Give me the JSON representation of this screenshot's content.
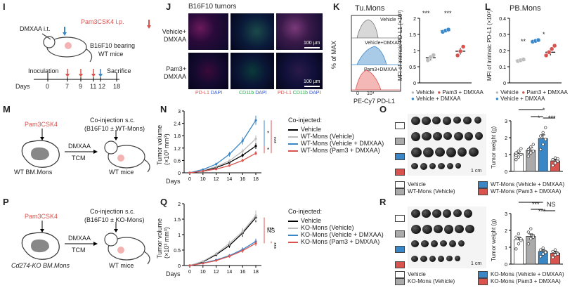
{
  "panelI": {
    "label": "I",
    "dmxaa": "DMXAA i.t.",
    "pam3": "Pam3CSK4 i.p.",
    "mice1": "B16F10 bearing",
    "mice2": "WT mice",
    "inoculation": "Inoculation",
    "sacrifice": "Sacrifice",
    "days_label": "Days",
    "days": [
      "0",
      "7",
      "9",
      "11",
      "12",
      "18"
    ]
  },
  "panelJ": {
    "label": "J",
    "title": "B16F10 tumors",
    "row1a": "Vehicle+",
    "row1b": "DMXAA",
    "row2a": "Pam3+",
    "row2b": "DMXAA",
    "scale1": "100 µm",
    "scale2": "100 µm",
    "col1_red": "PD-L1",
    "col1_blue": "DAPI",
    "col2_green": "CD11b",
    "col2_blue": "DAPI",
    "col3_red": "PD-L1",
    "col3_green": "CD11b",
    "col3_blue": "DAPI"
  },
  "panelK": {
    "label": "K",
    "title": "Tu.Mons",
    "ylabel_hist": "% of MAX",
    "xlabel_hist": "PE-Cy7 PD-L1",
    "hist_labels": [
      "Vehicle",
      "Vehicle+DMXAA",
      "Pam3+DMXAA"
    ],
    "hist_ticks": [
      "0",
      "10⁴"
    ],
    "ylabel": "MFI of intrinsic PD-L1",
    "yunit": "(×10³)",
    "sig1": "***",
    "sig2": "***",
    "legend": [
      "Vehicle",
      "Pam3 + DMXAA",
      "Vehicle + DMXAA"
    ]
  },
  "panelL": {
    "label": "L",
    "title": "PB.Mons",
    "ylabel": "MFI of intrinsic PD-L1",
    "yunit": "(×10³)",
    "sig1": "**",
    "sig2": "*",
    "legend": [
      "Vehicle",
      "Pam3 + DMXAA",
      "Vehicle + DMXAA"
    ]
  },
  "panelM": {
    "label": "M",
    "pam3": "Pam3CSK4",
    "coinj1": "Co-injection s.c.",
    "coinj2": "(B16F10 ± WT-Mons)",
    "dmxaa": "DMXAA",
    "tcm": "TCM",
    "source": "WT BM.Mons",
    "target": "WT mice"
  },
  "panelN": {
    "label": "N",
    "ylabel": "Tumor volume",
    "yunit": "(×10³ mm³)",
    "xlabel": "Days",
    "legend_title": "Co-injected:",
    "legend": [
      "Vehicle",
      "WT-Mons (Vehicle)",
      "WT-Mons (Vehicle + DMXAA)",
      "WT-Mons (Pam3 + DMXAA)"
    ],
    "sig": [
      "*",
      "*",
      "***"
    ]
  },
  "panelO": {
    "label": "O",
    "scale": "1 cm",
    "ylabel": "Tumor weight (g)",
    "sig": [
      "*",
      "*",
      "***"
    ],
    "legend": [
      "Vehicle",
      "WT-Mons (Vehicle)",
      "WT-Mons (Vehicle + DMXAA)",
      "WT-Mons (Pam3 + DMXAA)"
    ]
  },
  "panelP": {
    "label": "P",
    "pam3": "Pam3CSK4",
    "coinj1": "Co-injection s.c.",
    "coinj2": "(B16F10 ± KO-Mons)",
    "dmxaa": "DMXAA",
    "tcm": "TCM",
    "source": "Cd274-KO BM.Mons",
    "target": "WT mice"
  },
  "panelQ": {
    "label": "Q",
    "ylabel": "Tumor volume",
    "yunit": "(×10³ mm³)",
    "xlabel": "Days",
    "legend_title": "Co-injected:",
    "legend": [
      "Vehicle",
      "KO-Mons (Vehicle)",
      "KO-Mons (Vehicle + DMXAA)",
      "KO-Mons (Pam3 + DMXAA)"
    ],
    "sig": [
      "***",
      "***",
      "NS"
    ]
  },
  "panelR": {
    "label": "R",
    "scale": "1 cm",
    "ylabel": "Tumor weight (g)",
    "sig": [
      "***",
      "NS",
      "***"
    ],
    "legend": [
      "Vehicle",
      "KO-Mons (Vehicle)",
      "KO-Mons (Vehicle + DMXAA)",
      "KO-Mons (Pam3 + DMXAA)"
    ]
  },
  "colors": {
    "vehicle": "#000000",
    "mons_vehicle": "#bdbdbd",
    "dmxaa": "#3a87c8",
    "pam3": "#d9534f"
  },
  "chart_data": [
    {
      "id": "K",
      "type": "scatter",
      "categories": [
        "Vehicle",
        "Vehicle + DMXAA",
        "Pam3 + DMXAA"
      ],
      "ylim": [
        0,
        2.0
      ],
      "yticks": [
        0,
        0.5,
        1.0,
        1.5,
        2.0
      ],
      "series": [
        {
          "name": "Vehicle",
          "mean": 0.78,
          "err": 0.08,
          "points": [
            0.7,
            0.8,
            0.86
          ]
        },
        {
          "name": "Vehicle + DMXAA",
          "mean": 1.62,
          "err": 0.03,
          "points": [
            1.58,
            1.62,
            1.65
          ]
        },
        {
          "name": "Pam3 + DMXAA",
          "mean": 0.98,
          "err": 0.1,
          "points": [
            0.85,
            0.98,
            1.12
          ]
        }
      ]
    },
    {
      "id": "L",
      "type": "scatter",
      "categories": [
        "Vehicle",
        "Vehicle + DMXAA",
        "Pam3 + DMXAA"
      ],
      "ylim": [
        0,
        0.4
      ],
      "yticks": [
        0,
        0.1,
        0.2,
        0.3,
        0.4
      ],
      "series": [
        {
          "name": "Vehicle",
          "mean": 0.14,
          "err": 0.01,
          "points": [
            0.135,
            0.14,
            0.145
          ]
        },
        {
          "name": "Vehicle + DMXAA",
          "mean": 0.26,
          "err": 0.01,
          "points": [
            0.255,
            0.26,
            0.265
          ]
        },
        {
          "name": "Pam3 + DMXAA",
          "mean": 0.19,
          "err": 0.02,
          "points": [
            0.17,
            0.19,
            0.21,
            0.23
          ]
        }
      ]
    },
    {
      "id": "N",
      "type": "line",
      "x": [
        0,
        10,
        12,
        14,
        16,
        18
      ],
      "xlabel": "Days",
      "ylabel": "Tumor volume",
      "ylim": [
        0,
        3.0
      ],
      "yticks": [
        0,
        0.6,
        1.2,
        1.8,
        2.4,
        3.0
      ],
      "series": [
        {
          "name": "Vehicle",
          "values": [
            0,
            0.1,
            0.25,
            0.5,
            0.85,
            1.3
          ],
          "err": [
            0,
            0.02,
            0.04,
            0.07,
            0.1,
            0.14
          ]
        },
        {
          "name": "WT-Mons (Vehicle)",
          "values": [
            0,
            0.12,
            0.3,
            0.58,
            1.05,
            1.65
          ],
          "err": [
            0,
            0.02,
            0.05,
            0.08,
            0.12,
            0.17
          ]
        },
        {
          "name": "WT-Mons (Vehicle + DMXAA)",
          "values": [
            0,
            0.16,
            0.42,
            0.9,
            1.55,
            2.55
          ],
          "err": [
            0,
            0.03,
            0.07,
            0.12,
            0.18,
            0.22
          ]
        },
        {
          "name": "WT-Mons (Pam3 + DMXAA)",
          "values": [
            0,
            0.08,
            0.18,
            0.35,
            0.6,
            0.95
          ],
          "err": [
            0,
            0.02,
            0.03,
            0.05,
            0.08,
            0.1
          ]
        }
      ]
    },
    {
      "id": "O",
      "type": "bar",
      "categories": [
        "Vehicle",
        "WT-Mons (Vehicle)",
        "WT-Mons (Vehicle + DMXAA)",
        "WT-Mons (Pam3 + DMXAA)"
      ],
      "ylabel": "Tumor weight (g)",
      "ylim": [
        0,
        3
      ],
      "yticks": [
        0,
        1,
        2,
        3
      ],
      "series": [
        {
          "name": "Vehicle",
          "mean": 1.05,
          "err": 0.12,
          "points": [
            0.7,
            0.85,
            1.0,
            1.1,
            1.2,
            1.35,
            0.95
          ]
        },
        {
          "name": "WT-Mons (Vehicle)",
          "mean": 1.25,
          "err": 0.15,
          "points": [
            0.9,
            1.1,
            1.2,
            1.3,
            1.45,
            1.6,
            1.15
          ]
        },
        {
          "name": "WT-Mons (Vehicle + DMXAA)",
          "mean": 1.95,
          "err": 0.22,
          "points": [
            1.3,
            1.6,
            1.9,
            2.1,
            2.3,
            2.6
          ]
        },
        {
          "name": "WT-Mons (Pam3 + DMXAA)",
          "mean": 0.62,
          "err": 0.08,
          "points": [
            0.35,
            0.5,
            0.6,
            0.7,
            0.8,
            0.75
          ]
        }
      ]
    },
    {
      "id": "Q",
      "type": "line",
      "x": [
        0,
        10,
        12,
        14,
        16,
        18
      ],
      "xlabel": "Days",
      "ylabel": "Tumor volume",
      "ylim": [
        0,
        2.0
      ],
      "yticks": [
        0,
        0.5,
        1.0,
        1.5,
        2.0
      ],
      "series": [
        {
          "name": "Vehicle",
          "values": [
            0,
            0.12,
            0.35,
            0.65,
            1.05,
            1.55
          ],
          "err": [
            0,
            0.02,
            0.05,
            0.08,
            0.12,
            0.15
          ]
        },
        {
          "name": "KO-Mons (Vehicle)",
          "values": [
            0,
            0.14,
            0.38,
            0.72,
            1.1,
            1.62
          ],
          "err": [
            0,
            0.02,
            0.05,
            0.08,
            0.12,
            0.16
          ]
        },
        {
          "name": "KO-Mons (Vehicle + DMXAA)",
          "values": [
            0,
            0.08,
            0.18,
            0.32,
            0.52,
            0.78
          ],
          "err": [
            0,
            0.01,
            0.03,
            0.05,
            0.07,
            0.09
          ]
        },
        {
          "name": "KO-Mons (Pam3 + DMXAA)",
          "values": [
            0,
            0.07,
            0.16,
            0.3,
            0.48,
            0.72
          ],
          "err": [
            0,
            0.01,
            0.03,
            0.05,
            0.07,
            0.08
          ]
        }
      ]
    },
    {
      "id": "R",
      "type": "bar",
      "categories": [
        "Vehicle",
        "KO-Mons (Vehicle)",
        "KO-Mons (Vehicle + DMXAA)",
        "KO-Mons (Pam3 + DMXAA)"
      ],
      "ylabel": "Tumor weight (g)",
      "ylim": [
        0,
        3
      ],
      "yticks": [
        0,
        1,
        2,
        3
      ],
      "series": [
        {
          "name": "Vehicle",
          "mean": 1.45,
          "err": 0.15,
          "points": [
            0.9,
            1.2,
            1.4,
            1.6,
            1.8,
            1.5
          ]
        },
        {
          "name": "KO-Mons (Vehicle)",
          "mean": 1.65,
          "err": 0.14,
          "points": [
            1.2,
            1.5,
            1.7,
            1.9,
            2.1,
            1.6
          ]
        },
        {
          "name": "KO-Mons (Vehicle + DMXAA)",
          "mean": 0.75,
          "err": 0.09,
          "points": [
            0.45,
            0.6,
            0.75,
            0.85,
            0.95,
            0.7
          ]
        },
        {
          "name": "KO-Mons (Pam3 + DMXAA)",
          "mean": 0.65,
          "err": 0.08,
          "points": [
            0.4,
            0.55,
            0.65,
            0.75,
            0.85,
            0.6
          ]
        }
      ]
    }
  ]
}
